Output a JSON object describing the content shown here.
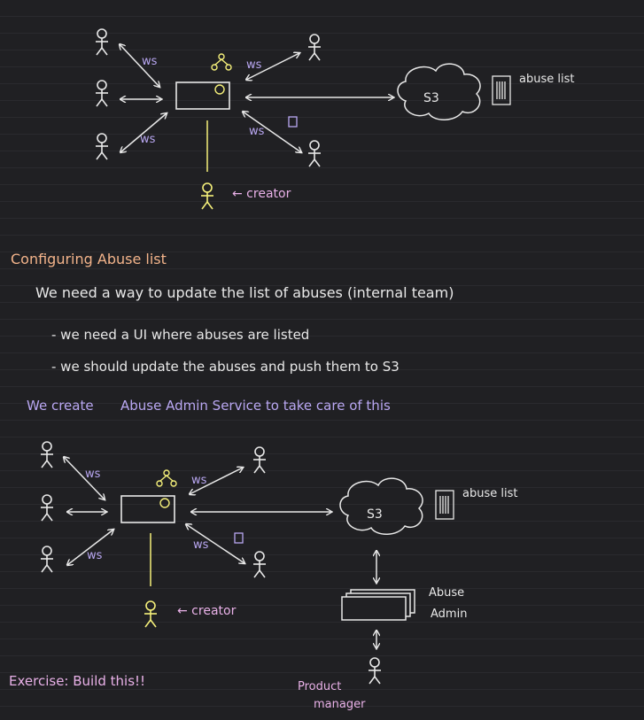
{
  "diagram1": {
    "ws_labels": [
      "ws",
      "ws",
      "ws",
      "ws"
    ],
    "s3_label": "S3",
    "abuse_list_label": "abuse list",
    "creator_label": "← creator"
  },
  "notes": {
    "heading": "Configuring Abuse list",
    "line1": "We need a way to update the list of abuses (internal team)",
    "bullet1": "- we need a UI where abuses are listed",
    "bullet2": "- we should update the abuses and push them to S3",
    "conclusion_prefix": "We create",
    "conclusion_rest": "Abuse Admin Service to take care of this"
  },
  "diagram2": {
    "ws_labels": [
      "ws",
      "ws",
      "ws",
      "ws"
    ],
    "s3_label": "S3",
    "abuse_list_label": "abuse list",
    "creator_label": "← creator",
    "admin_label_1": "Abuse",
    "admin_label_2": "Admin",
    "pm_label_1": "Product",
    "pm_label_2": "manager"
  },
  "exercise": "Exercise: Build this!!",
  "colors": {
    "background": "#202023",
    "white": "#e8e8e8",
    "orange": "#f2b38a",
    "purple": "#b9a7f2",
    "pink": "#e9b1e8",
    "yellow": "#f5f07a"
  }
}
